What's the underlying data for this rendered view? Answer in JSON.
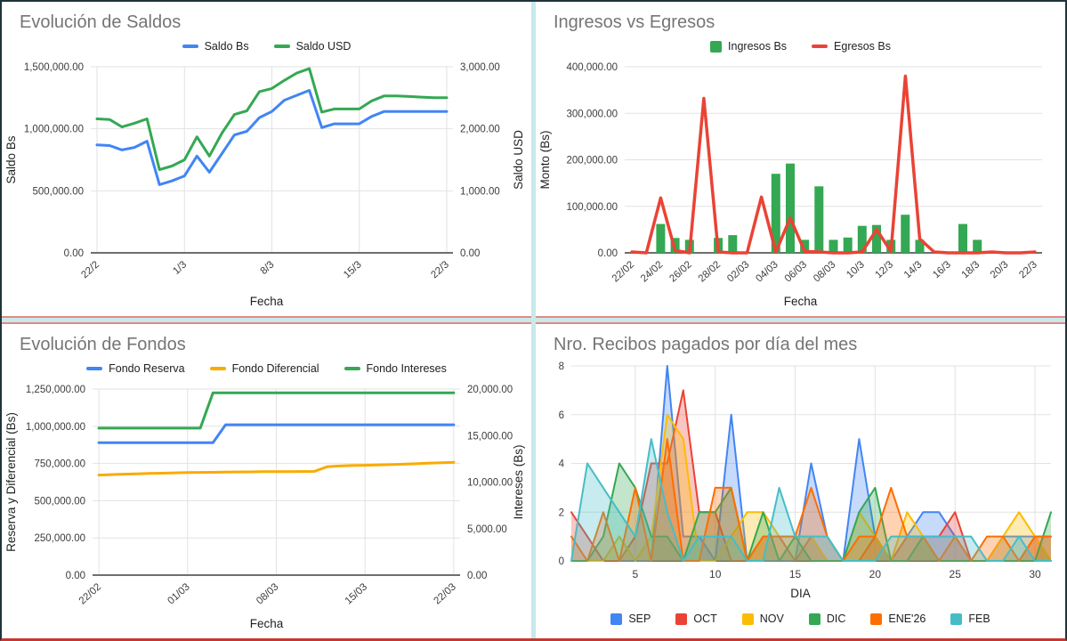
{
  "accents": {
    "outer_frame": "#20333a",
    "divider_teal": "#c9e9ea",
    "divider_red": "#e08a85",
    "bottom_edge_red": "#c7372f"
  },
  "chart_data": [
    {
      "id": "saldos",
      "type": "line",
      "title": "Evolución de Saldos",
      "x_title": "Fecha",
      "legend_position": "top",
      "y_left": {
        "title": "Saldo Bs",
        "min": 0,
        "max": 1500000,
        "ticks": [
          [
            0,
            "0.00"
          ],
          [
            500000,
            "500,000.00"
          ],
          [
            1000000,
            "1,000,000.00"
          ],
          [
            1500000,
            "1,500,000.00"
          ]
        ]
      },
      "y_right": {
        "title": "Saldo USD",
        "min": 0,
        "max": 3000,
        "ticks": [
          [
            0,
            "0.00"
          ],
          [
            1000,
            "1,000.00"
          ],
          [
            2000,
            "2,000.00"
          ],
          [
            3000,
            "3,000.00"
          ]
        ]
      },
      "x": {
        "mode": "categorical",
        "count": 29,
        "grid": true,
        "ticks": [
          [
            0,
            "22/2"
          ],
          [
            7,
            "1/3"
          ],
          [
            14,
            "8/3"
          ],
          [
            21,
            "15/3"
          ],
          [
            28,
            "22/3"
          ]
        ]
      },
      "layout": {
        "ml": 100,
        "mr": 88,
        "mt": 10,
        "mb": 46,
        "rot": true
      },
      "series": [
        {
          "name": "Saldo Bs",
          "color": "#4285f4",
          "axis": "left",
          "kind": "line",
          "marker": "line",
          "width": 3,
          "values": [
            870000,
            865000,
            830000,
            850000,
            900000,
            550000,
            580000,
            620000,
            780000,
            650000,
            800000,
            950000,
            980000,
            1090000,
            1140000,
            1230000,
            1270000,
            1310000,
            1010000,
            1040000,
            1040000,
            1040000,
            1100000,
            1140000,
            1140000,
            1140000,
            1140000,
            1140000,
            1140000
          ]
        },
        {
          "name": "Saldo USD",
          "color": "#34a853",
          "axis": "right",
          "kind": "line",
          "marker": "line",
          "width": 3,
          "values": [
            2160,
            2150,
            2030,
            2090,
            2160,
            1340,
            1400,
            1500,
            1870,
            1560,
            1930,
            2230,
            2290,
            2600,
            2650,
            2780,
            2900,
            2970,
            2270,
            2320,
            2320,
            2320,
            2450,
            2530,
            2530,
            2520,
            2510,
            2500,
            2500
          ]
        }
      ]
    },
    {
      "id": "ingresos-egresos",
      "type": "combo-bar-line",
      "title": "Ingresos vs Egresos",
      "x_title": "Fecha",
      "legend_position": "top",
      "y_left": {
        "title": "Monto (Bs)",
        "min": 0,
        "max": 400000,
        "ticks": [
          [
            0,
            "0.00"
          ],
          [
            100000,
            "100,000.00"
          ],
          [
            200000,
            "200,000.00"
          ],
          [
            300000,
            "300,000.00"
          ],
          [
            400000,
            "400,000.00"
          ]
        ]
      },
      "x": {
        "mode": "categorical",
        "count": 29,
        "grid": false,
        "ticks": [
          [
            0,
            "22/02"
          ],
          [
            2,
            "24/02"
          ],
          [
            4,
            "26/02"
          ],
          [
            6,
            "28/02"
          ],
          [
            8,
            "02/03"
          ],
          [
            10,
            "04/03"
          ],
          [
            12,
            "06/03"
          ],
          [
            14,
            "08/03"
          ],
          [
            16,
            "10/3"
          ],
          [
            18,
            "12/3"
          ],
          [
            20,
            "14/3"
          ],
          [
            22,
            "16/3"
          ],
          [
            24,
            "18/3"
          ],
          [
            26,
            "20/3"
          ],
          [
            28,
            "22/3"
          ]
        ]
      },
      "layout": {
        "ml": 100,
        "mr": 26,
        "mt": 10,
        "mb": 46,
        "rot": true
      },
      "series": [
        {
          "name": "Ingresos Bs",
          "color": "#34a853",
          "axis": "left",
          "kind": "bar",
          "marker": "square",
          "values": [
            0,
            0,
            62000,
            32000,
            28000,
            0,
            32000,
            38000,
            0,
            0,
            170000,
            192000,
            28000,
            143000,
            28000,
            33000,
            58000,
            60000,
            28000,
            82000,
            28000,
            0,
            0,
            62000,
            28000,
            0,
            0,
            0,
            0
          ]
        },
        {
          "name": "Egresos Bs",
          "color": "#ea4335",
          "axis": "left",
          "kind": "line",
          "marker": "line",
          "width": 3.5,
          "values": [
            2000,
            0,
            118000,
            5000,
            0,
            332000,
            2000,
            0,
            0,
            120000,
            2000,
            75000,
            3000,
            2000,
            0,
            0,
            2000,
            50000,
            3000,
            380000,
            30000,
            2000,
            0,
            0,
            0,
            2000,
            0,
            0,
            2000
          ]
        }
      ]
    },
    {
      "id": "fondos",
      "type": "line",
      "title": "Evolución de Fondos",
      "x_title": "Fecha",
      "legend_position": "top",
      "y_left": {
        "title": "Reserva y Diferencial (Bs)",
        "min": 0,
        "max": 1250000,
        "ticks": [
          [
            0,
            "0.00"
          ],
          [
            250000,
            "250,000.00"
          ],
          [
            500000,
            "500,000.00"
          ],
          [
            750000,
            "750,000.00"
          ],
          [
            1000000,
            "1,000,000.00"
          ],
          [
            1250000,
            "1,250,000.00"
          ]
        ]
      },
      "y_right": {
        "title": "Intereses (Bs)",
        "min": 0,
        "max": 20000,
        "ticks": [
          [
            0,
            "0.00"
          ],
          [
            5000,
            "5,000.00"
          ],
          [
            10000,
            "10,000.00"
          ],
          [
            15000,
            "15,000.00"
          ],
          [
            20000,
            "20,000.00"
          ]
        ]
      },
      "x": {
        "mode": "categorical",
        "count": 29,
        "grid": true,
        "ticks": [
          [
            0,
            "22/02"
          ],
          [
            7,
            "01/03"
          ],
          [
            14,
            "08/03"
          ],
          [
            21,
            "15/03"
          ],
          [
            28,
            "22/03"
          ]
        ]
      },
      "layout": {
        "ml": 102,
        "mr": 80,
        "mt": 10,
        "mb": 46,
        "rot": true
      },
      "series": [
        {
          "name": "Fondo Reserva",
          "color": "#4285f4",
          "axis": "left",
          "kind": "line",
          "marker": "line",
          "width": 3,
          "values": [
            890000,
            890000,
            890000,
            890000,
            890000,
            890000,
            890000,
            890000,
            890000,
            890000,
            1010000,
            1010000,
            1010000,
            1010000,
            1010000,
            1010000,
            1010000,
            1010000,
            1010000,
            1010000,
            1010000,
            1010000,
            1010000,
            1010000,
            1010000,
            1010000,
            1010000,
            1010000,
            1010000
          ]
        },
        {
          "name": "Fondo Diferencial",
          "color": "#f9ab00",
          "axis": "left",
          "kind": "line",
          "marker": "line",
          "width": 3,
          "values": [
            672000,
            675000,
            678000,
            680000,
            683000,
            685000,
            687000,
            689000,
            690000,
            691000,
            692000,
            693000,
            694000,
            695000,
            695000,
            695000,
            696000,
            697000,
            728000,
            733000,
            736000,
            738000,
            740000,
            742000,
            745000,
            748000,
            752000,
            755000,
            758000
          ]
        },
        {
          "name": "Fondo Intereses",
          "color": "#34a853",
          "axis": "right",
          "kind": "line",
          "marker": "line",
          "width": 3,
          "values": [
            15800,
            15800,
            15800,
            15800,
            15800,
            15800,
            15800,
            15800,
            15800,
            19600,
            19600,
            19600,
            19600,
            19600,
            19600,
            19600,
            19600,
            19600,
            19600,
            19600,
            19600,
            19600,
            19600,
            19600,
            19600,
            19600,
            19600,
            19600,
            19600
          ]
        }
      ]
    },
    {
      "id": "recibos",
      "type": "area",
      "title": "Nro. Recibos pagados por día del mes",
      "x_title": "DIA",
      "legend_position": "bottom",
      "y_left": {
        "title": "",
        "min": 0,
        "max": 8,
        "ticks": [
          [
            0,
            "0"
          ],
          [
            2,
            "2"
          ],
          [
            4,
            "4"
          ],
          [
            6,
            "6"
          ],
          [
            8,
            "8"
          ]
        ]
      },
      "x": {
        "mode": "numeric",
        "min": 1,
        "max": 31,
        "grid": true,
        "ticks": [
          [
            5,
            "5"
          ],
          [
            10,
            "10"
          ],
          [
            15,
            "15"
          ],
          [
            20,
            "20"
          ],
          [
            25,
            "25"
          ],
          [
            30,
            "30"
          ]
        ]
      },
      "layout": {
        "ml": 40,
        "mr": 16,
        "mt": 10,
        "mb": 28,
        "rot": false
      },
      "series": [
        {
          "name": "SEP",
          "color": "#4285f4",
          "axis": "left",
          "kind": "area",
          "marker": "square",
          "width": 2,
          "values": [
            0,
            0,
            0,
            0,
            0,
            0,
            8,
            1,
            1,
            0,
            6,
            0,
            0,
            0,
            0,
            4,
            1,
            0,
            5,
            1,
            0,
            1,
            2,
            2,
            1,
            0,
            0,
            1,
            1,
            1,
            0
          ]
        },
        {
          "name": "OCT",
          "color": "#ea4335",
          "axis": "left",
          "kind": "area",
          "marker": "square",
          "width": 2,
          "values": [
            2,
            1,
            0,
            0,
            1,
            4,
            4,
            7,
            2,
            2,
            0,
            0,
            1,
            1,
            0,
            1,
            0,
            0,
            0,
            1,
            0,
            1,
            1,
            1,
            2,
            0,
            0,
            0,
            0,
            1,
            1
          ]
        },
        {
          "name": "NOV",
          "color": "#fbbc04",
          "axis": "left",
          "kind": "area",
          "marker": "square",
          "width": 2,
          "values": [
            0,
            0,
            0,
            1,
            0,
            1,
            6,
            5,
            0,
            0,
            1,
            2,
            2,
            1,
            1,
            1,
            0,
            0,
            2,
            1,
            0,
            2,
            1,
            0,
            0,
            0,
            0,
            1,
            2,
            1,
            0
          ]
        },
        {
          "name": "DIC",
          "color": "#34a853",
          "axis": "left",
          "kind": "area",
          "marker": "square",
          "width": 2,
          "values": [
            0,
            0,
            1,
            4,
            3,
            1,
            1,
            0,
            2,
            2,
            3,
            0,
            2,
            0,
            1,
            0,
            0,
            0,
            2,
            3,
            0,
            0,
            1,
            0,
            0,
            0,
            0,
            0,
            0,
            0,
            2
          ]
        },
        {
          "name": "ENE'26",
          "color": "#ff6d01",
          "axis": "left",
          "kind": "area",
          "marker": "square",
          "width": 2,
          "values": [
            1,
            0,
            2,
            0,
            3,
            0,
            5,
            0,
            0,
            3,
            3,
            0,
            1,
            1,
            1,
            3,
            1,
            0,
            1,
            1,
            3,
            1,
            1,
            0,
            1,
            0,
            1,
            1,
            0,
            1,
            1
          ]
        },
        {
          "name": "FEB",
          "color": "#46bdc6",
          "axis": "left",
          "kind": "area",
          "marker": "square",
          "width": 2,
          "values": [
            0,
            4,
            3,
            2,
            1,
            5,
            2,
            0,
            1,
            1,
            1,
            0,
            0,
            3,
            1,
            1,
            1,
            0,
            0,
            0,
            1,
            1,
            1,
            1,
            1,
            1,
            0,
            0,
            1,
            0,
            0
          ]
        }
      ]
    }
  ]
}
